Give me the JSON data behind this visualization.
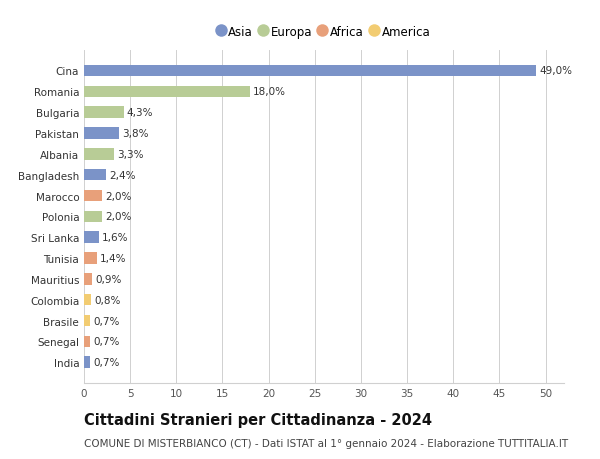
{
  "categories": [
    "India",
    "Senegal",
    "Brasile",
    "Colombia",
    "Mauritius",
    "Tunisia",
    "Sri Lanka",
    "Polonia",
    "Marocco",
    "Bangladesh",
    "Albania",
    "Pakistan",
    "Bulgaria",
    "Romania",
    "Cina"
  ],
  "values": [
    0.7,
    0.7,
    0.7,
    0.8,
    0.9,
    1.4,
    1.6,
    2.0,
    2.0,
    2.4,
    3.3,
    3.8,
    4.3,
    18.0,
    49.0
  ],
  "labels": [
    "0,7%",
    "0,7%",
    "0,7%",
    "0,8%",
    "0,9%",
    "1,4%",
    "1,6%",
    "2,0%",
    "2,0%",
    "2,4%",
    "3,3%",
    "3,8%",
    "4,3%",
    "18,0%",
    "49,0%"
  ],
  "regions": [
    "Asia",
    "Africa",
    "America",
    "America",
    "Africa",
    "Africa",
    "Asia",
    "Europa",
    "Africa",
    "Asia",
    "Europa",
    "Asia",
    "Europa",
    "Europa",
    "Asia"
  ],
  "colors": {
    "Asia": "#7b93c8",
    "Europa": "#b8cc96",
    "Africa": "#e8a07a",
    "America": "#f2cc72"
  },
  "legend_order": [
    "Asia",
    "Europa",
    "Africa",
    "America"
  ],
  "title": "Cittadini Stranieri per Cittadinanza - 2024",
  "subtitle": "COMUNE DI MISTERBIANCO (CT) - Dati ISTAT al 1° gennaio 2024 - Elaborazione TUTTITALIA.IT",
  "xlim": [
    0,
    52
  ],
  "xticks": [
    0,
    5,
    10,
    15,
    20,
    25,
    30,
    35,
    40,
    45,
    50
  ],
  "background_color": "#ffffff",
  "grid_color": "#d0d0d0",
  "bar_height": 0.55,
  "title_fontsize": 10.5,
  "subtitle_fontsize": 7.5,
  "label_fontsize": 7.5,
  "tick_fontsize": 7.5,
  "legend_fontsize": 8.5
}
